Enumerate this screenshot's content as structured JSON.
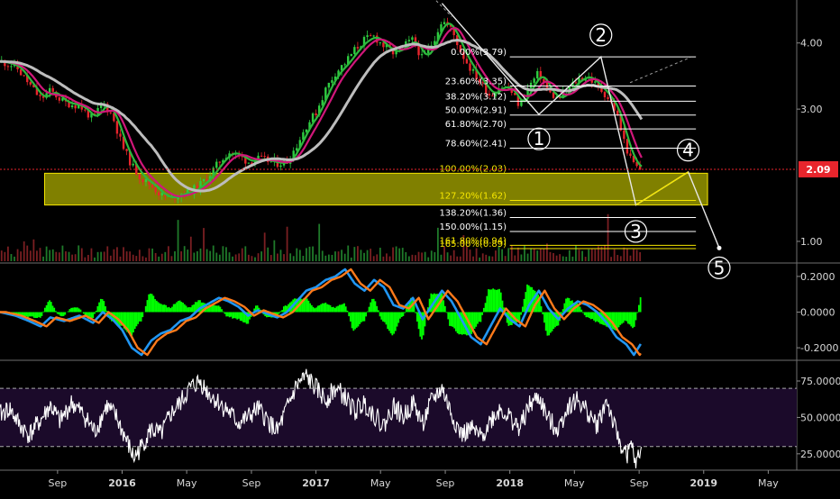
{
  "chart_data": [
    {
      "type": "candlestick",
      "panel": "price",
      "axis_ticks": [
        {
          "label": "4.00",
          "value": 4.0
        },
        {
          "label": "3.00",
          "value": 3.0
        },
        {
          "label": "1.00",
          "value": 1.0
        }
      ],
      "ylim": [
        0.7,
        4.65
      ],
      "current_price": {
        "label": "2.09",
        "value": 2.09,
        "color": "#e8252c"
      },
      "x_ticks": [
        {
          "label": "Sep",
          "t": 2015.667,
          "bold": false
        },
        {
          "label": "2016",
          "t": 2016.0,
          "bold": true
        },
        {
          "label": "May",
          "t": 2016.333,
          "bold": false
        },
        {
          "label": "Sep",
          "t": 2016.667,
          "bold": false
        },
        {
          "label": "2017",
          "t": 2017.0,
          "bold": true
        },
        {
          "label": "May",
          "t": 2017.333,
          "bold": false
        },
        {
          "label": "Sep",
          "t": 2017.667,
          "bold": false
        },
        {
          "label": "2018",
          "t": 2018.0,
          "bold": true
        },
        {
          "label": "May",
          "t": 2018.333,
          "bold": false
        },
        {
          "label": "Sep",
          "t": 2018.667,
          "bold": false
        },
        {
          "label": "2019",
          "t": 2019.0,
          "bold": true
        },
        {
          "label": "May",
          "t": 2019.333,
          "bold": false
        }
      ],
      "xlim": [
        2015.37,
        2019.48
      ],
      "price_path": [
        [
          2015.37,
          3.72
        ],
        [
          2015.45,
          3.65
        ],
        [
          2015.52,
          3.38
        ],
        [
          2015.58,
          3.15
        ],
        [
          2015.63,
          3.28
        ],
        [
          2015.7,
          3.1
        ],
        [
          2015.78,
          3.05
        ],
        [
          2015.85,
          2.85
        ],
        [
          2015.9,
          3.1
        ],
        [
          2015.95,
          2.9
        ],
        [
          2016.0,
          2.45
        ],
        [
          2016.05,
          2.15
        ],
        [
          2016.1,
          1.95
        ],
        [
          2016.15,
          1.85
        ],
        [
          2016.2,
          1.7
        ],
        [
          2016.25,
          1.65
        ],
        [
          2016.3,
          1.72
        ],
        [
          2016.35,
          1.75
        ],
        [
          2016.4,
          1.85
        ],
        [
          2016.45,
          2.0
        ],
        [
          2016.5,
          2.2
        ],
        [
          2016.55,
          2.35
        ],
        [
          2016.6,
          2.3
        ],
        [
          2016.65,
          2.2
        ],
        [
          2016.7,
          2.25
        ],
        [
          2016.75,
          2.22
        ],
        [
          2016.8,
          2.18
        ],
        [
          2016.85,
          2.2
        ],
        [
          2016.9,
          2.45
        ],
        [
          2016.95,
          2.75
        ],
        [
          2017.0,
          2.95
        ],
        [
          2017.05,
          3.3
        ],
        [
          2017.1,
          3.55
        ],
        [
          2017.15,
          3.7
        ],
        [
          2017.2,
          3.9
        ],
        [
          2017.25,
          4.05
        ],
        [
          2017.3,
          4.1
        ],
        [
          2017.35,
          3.95
        ],
        [
          2017.4,
          3.85
        ],
        [
          2017.45,
          3.95
        ],
        [
          2017.5,
          4.05
        ],
        [
          2017.55,
          3.75
        ],
        [
          2017.6,
          4.0
        ],
        [
          2017.65,
          4.35
        ],
        [
          2017.7,
          4.2
        ],
        [
          2017.75,
          3.85
        ],
        [
          2017.8,
          3.6
        ],
        [
          2017.85,
          3.4
        ],
        [
          2017.9,
          3.2
        ],
        [
          2017.95,
          3.35
        ],
        [
          2018.0,
          3.3
        ],
        [
          2018.05,
          3.05
        ],
        [
          2018.1,
          3.35
        ],
        [
          2018.15,
          3.55
        ],
        [
          2018.2,
          3.25
        ],
        [
          2018.25,
          3.15
        ],
        [
          2018.3,
          3.3
        ],
        [
          2018.35,
          3.45
        ],
        [
          2018.4,
          3.5
        ],
        [
          2018.45,
          3.35
        ],
        [
          2018.5,
          3.2
        ],
        [
          2018.55,
          2.95
        ],
        [
          2018.58,
          2.6
        ],
        [
          2018.62,
          2.25
        ],
        [
          2018.66,
          2.1
        ],
        [
          2018.68,
          2.09
        ]
      ],
      "moving_averages": [
        {
          "name": "ma-fast",
          "color": "#2db83d",
          "lag": 0.05
        },
        {
          "name": "ma-mid",
          "color": "#d0177a",
          "lag": 0.1
        },
        {
          "name": "ma-slow",
          "color": "#bdbdbd",
          "lag": 0.28
        }
      ],
      "fibonacci": {
        "color_line": "#ffffff",
        "x_range": [
          2018.0,
          2018.96
        ],
        "levels": [
          {
            "label": "0.00%(3.79)",
            "price": 3.79,
            "color": "#ffffff"
          },
          {
            "label": "23.60%(3.35)",
            "price": 3.35,
            "color": "#ffffff"
          },
          {
            "label": "38.20%(3.12)",
            "price": 3.12,
            "color": "#ffffff"
          },
          {
            "label": "50.00%(2.91)",
            "price": 2.91,
            "color": "#ffffff"
          },
          {
            "label": "61.80%(2.70)",
            "price": 2.7,
            "color": "#ffffff"
          },
          {
            "label": "78.60%(2.41)",
            "price": 2.41,
            "color": "#ffffff"
          },
          {
            "label": "100.00%(2.03)",
            "price": 2.03,
            "color": "#f5e600"
          },
          {
            "label": "127.20%(1.62)",
            "price": 1.62,
            "color": "#f5e600"
          },
          {
            "label": "138.20%(1.36)",
            "price": 1.36,
            "color": "#ffffff"
          },
          {
            "label": "150.00%(1.15)",
            "price": 1.15,
            "color": "#ffffff"
          },
          {
            "label": "161.80%(0.94)",
            "price": 0.94,
            "color": "#f5e600"
          },
          {
            "label": "165.00%(0.89)",
            "price": 0.89,
            "color": "#f5e600"
          }
        ]
      },
      "support_zone": {
        "t_start": 2015.6,
        "t_end": 2019.02,
        "price_top": 2.03,
        "price_bottom": 1.55,
        "color": "#808000"
      },
      "waves": [
        {
          "label": "1",
          "t": 2018.15,
          "price": 2.92,
          "label_price": 2.55
        },
        {
          "label": "2",
          "t": 2018.47,
          "price": 3.79,
          "label_price": 4.12
        },
        {
          "label": "3",
          "t": 2018.65,
          "price": 1.55,
          "label_price": 1.15
        },
        {
          "label": "4",
          "t": 2018.92,
          "price": 2.05,
          "label_price": 2.38
        },
        {
          "label": "5",
          "t": 2019.08,
          "price": 0.9,
          "label_price": 0.6
        }
      ],
      "wave_path": [
        [
          2017.65,
          4.6
        ],
        [
          2018.15,
          2.92
        ],
        [
          2018.47,
          3.79
        ],
        [
          2018.65,
          1.55
        ],
        [
          2018.92,
          2.05
        ],
        [
          2019.08,
          0.9
        ]
      ],
      "wave_path_color": "#e8e8e8",
      "projection_color": "#f5e600",
      "dashed_trendlines": [
        {
          "from": [
            2017.62,
            4.64
          ],
          "to": [
            2017.7,
            4.4
          ]
        },
        {
          "from": [
            2018.62,
            3.4
          ],
          "to": [
            2018.93,
            3.78
          ]
        }
      ]
    },
    {
      "type": "line",
      "panel": "macd",
      "axis_ticks": [
        {
          "label": "0.2000",
          "value": 0.2
        },
        {
          "label": "0.0000",
          "value": 0.0
        },
        {
          "label": "-0.2000",
          "value": -0.2
        }
      ],
      "ylim": [
        -0.26,
        0.26
      ],
      "series": [
        {
          "role": "macd",
          "color": "#2196f3"
        },
        {
          "role": "signal",
          "color": "#ff7a1a"
        },
        {
          "role": "histogram",
          "color": "#00ff00"
        }
      ],
      "macd_path": [
        [
          2015.37,
          0.0
        ],
        [
          2015.45,
          -0.02
        ],
        [
          2015.52,
          -0.05
        ],
        [
          2015.58,
          -0.08
        ],
        [
          2015.63,
          -0.03
        ],
        [
          2015.7,
          -0.05
        ],
        [
          2015.78,
          -0.02
        ],
        [
          2015.85,
          -0.06
        ],
        [
          2015.9,
          0.0
        ],
        [
          2015.95,
          -0.04
        ],
        [
          2016.0,
          -0.1
        ],
        [
          2016.05,
          -0.2
        ],
        [
          2016.1,
          -0.24
        ],
        [
          2016.15,
          -0.16
        ],
        [
          2016.2,
          -0.12
        ],
        [
          2016.25,
          -0.1
        ],
        [
          2016.3,
          -0.05
        ],
        [
          2016.35,
          -0.03
        ],
        [
          2016.4,
          0.02
        ],
        [
          2016.45,
          0.05
        ],
        [
          2016.5,
          0.08
        ],
        [
          2016.55,
          0.06
        ],
        [
          2016.6,
          0.03
        ],
        [
          2016.65,
          -0.02
        ],
        [
          2016.7,
          0.01
        ],
        [
          2016.75,
          -0.01
        ],
        [
          2016.8,
          -0.03
        ],
        [
          2016.85,
          0.0
        ],
        [
          2016.9,
          0.06
        ],
        [
          2016.95,
          0.12
        ],
        [
          2017.0,
          0.14
        ],
        [
          2017.05,
          0.18
        ],
        [
          2017.1,
          0.2
        ],
        [
          2017.15,
          0.24
        ],
        [
          2017.2,
          0.16
        ],
        [
          2017.25,
          0.12
        ],
        [
          2017.3,
          0.18
        ],
        [
          2017.35,
          0.14
        ],
        [
          2017.4,
          0.04
        ],
        [
          2017.45,
          0.02
        ],
        [
          2017.5,
          0.08
        ],
        [
          2017.55,
          -0.04
        ],
        [
          2017.6,
          0.04
        ],
        [
          2017.65,
          0.12
        ],
        [
          2017.7,
          0.06
        ],
        [
          2017.75,
          -0.04
        ],
        [
          2017.8,
          -0.14
        ],
        [
          2017.85,
          -0.18
        ],
        [
          2017.9,
          -0.08
        ],
        [
          2017.95,
          0.02
        ],
        [
          2018.0,
          -0.04
        ],
        [
          2018.05,
          -0.08
        ],
        [
          2018.1,
          0.04
        ],
        [
          2018.15,
          0.12
        ],
        [
          2018.2,
          0.02
        ],
        [
          2018.25,
          -0.04
        ],
        [
          2018.3,
          0.02
        ],
        [
          2018.35,
          0.06
        ],
        [
          2018.4,
          0.04
        ],
        [
          2018.45,
          0.0
        ],
        [
          2018.5,
          -0.06
        ],
        [
          2018.55,
          -0.14
        ],
        [
          2018.6,
          -0.18
        ],
        [
          2018.64,
          -0.24
        ],
        [
          2018.68,
          -0.17
        ]
      ]
    },
    {
      "type": "line",
      "panel": "rsi",
      "axis_ticks": [
        {
          "label": "75.0000",
          "value": 75
        },
        {
          "label": "50.0000",
          "value": 50
        },
        {
          "label": "25.0000",
          "value": 25
        }
      ],
      "ylim": [
        15,
        88
      ],
      "bands": {
        "upper": 70,
        "lower": 30,
        "fill": "#1b0a2a"
      },
      "series": [
        {
          "role": "rsi",
          "color": "#ffffff"
        }
      ],
      "rsi_path": [
        [
          2015.37,
          52
        ],
        [
          2015.42,
          56
        ],
        [
          2015.47,
          45
        ],
        [
          2015.52,
          38
        ],
        [
          2015.58,
          48
        ],
        [
          2015.63,
          58
        ],
        [
          2015.68,
          47
        ],
        [
          2015.74,
          60
        ],
        [
          2015.8,
          52
        ],
        [
          2015.86,
          40
        ],
        [
          2015.92,
          58
        ],
        [
          2015.97,
          50
        ],
        [
          2016.02,
          35
        ],
        [
          2016.06,
          22
        ],
        [
          2016.1,
          30
        ],
        [
          2016.15,
          42
        ],
        [
          2016.2,
          38
        ],
        [
          2016.25,
          52
        ],
        [
          2016.3,
          60
        ],
        [
          2016.35,
          70
        ],
        [
          2016.4,
          75
        ],
        [
          2016.45,
          66
        ],
        [
          2016.5,
          60
        ],
        [
          2016.55,
          54
        ],
        [
          2016.6,
          46
        ],
        [
          2016.65,
          50
        ],
        [
          2016.7,
          56
        ],
        [
          2016.75,
          48
        ],
        [
          2016.8,
          40
        ],
        [
          2016.85,
          56
        ],
        [
          2016.9,
          72
        ],
        [
          2016.95,
          78
        ],
        [
          2017.0,
          70
        ],
        [
          2017.05,
          62
        ],
        [
          2017.1,
          70
        ],
        [
          2017.15,
          64
        ],
        [
          2017.2,
          54
        ],
        [
          2017.25,
          60
        ],
        [
          2017.3,
          52
        ],
        [
          2017.35,
          44
        ],
        [
          2017.4,
          58
        ],
        [
          2017.45,
          50
        ],
        [
          2017.5,
          60
        ],
        [
          2017.55,
          46
        ],
        [
          2017.6,
          62
        ],
        [
          2017.65,
          70
        ],
        [
          2017.7,
          52
        ],
        [
          2017.75,
          38
        ],
        [
          2017.8,
          42
        ],
        [
          2017.85,
          36
        ],
        [
          2017.9,
          48
        ],
        [
          2017.95,
          56
        ],
        [
          2018.0,
          50
        ],
        [
          2018.05,
          42
        ],
        [
          2018.1,
          58
        ],
        [
          2018.15,
          64
        ],
        [
          2018.2,
          48
        ],
        [
          2018.25,
          42
        ],
        [
          2018.3,
          58
        ],
        [
          2018.35,
          62
        ],
        [
          2018.4,
          54
        ],
        [
          2018.45,
          44
        ],
        [
          2018.5,
          62
        ],
        [
          2018.55,
          38
        ],
        [
          2018.6,
          24
        ],
        [
          2018.63,
          30
        ],
        [
          2018.65,
          16
        ],
        [
          2018.68,
          30
        ]
      ]
    }
  ]
}
